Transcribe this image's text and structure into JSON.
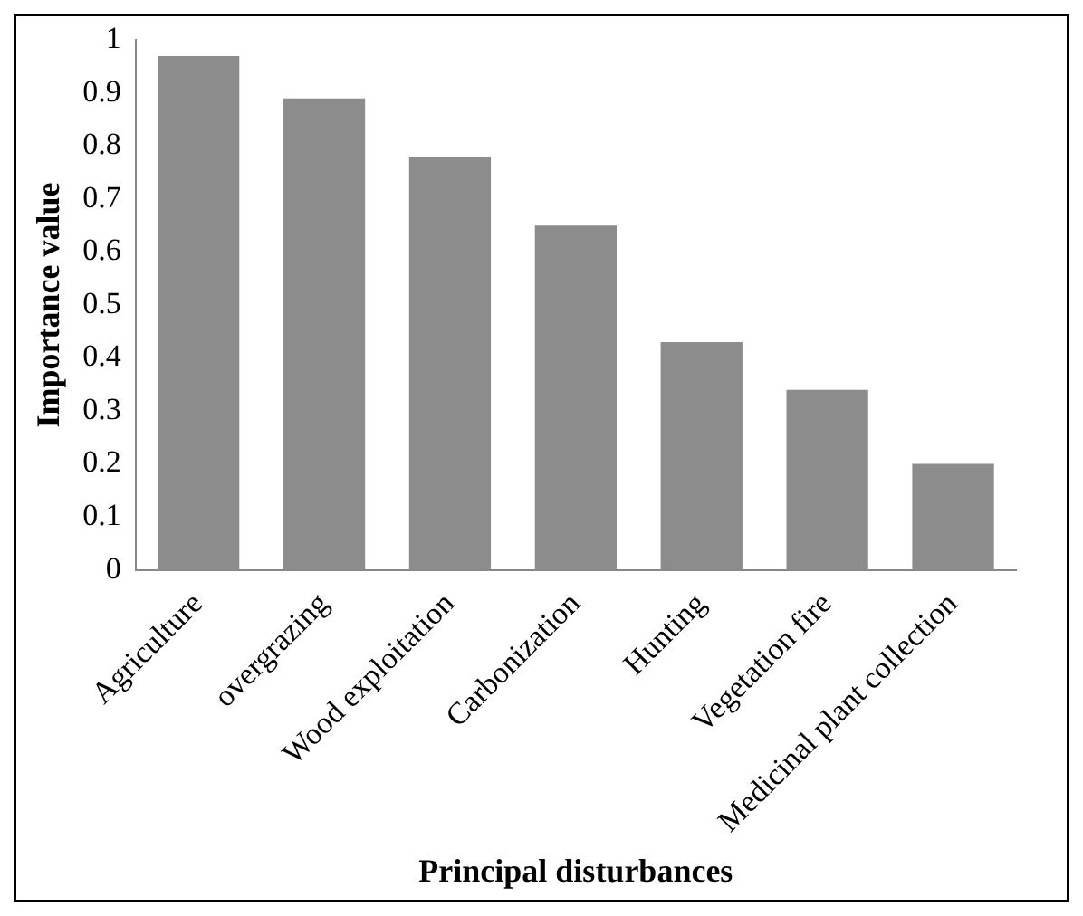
{
  "chart_data": {
    "type": "bar",
    "xlabel": "Principal disturbances",
    "ylabel": "Importance value",
    "categories": [
      "Agriculture",
      "overgrazing",
      "Wood exploitation",
      "Carbonization",
      "Hunting",
      "Vegetation fire",
      "Medicinal plant collection"
    ],
    "values": [
      0.97,
      0.89,
      0.78,
      0.65,
      0.43,
      0.34,
      0.2
    ],
    "color": "#8c8c8c",
    "ylim": [
      0,
      1
    ],
    "yticks": [
      0,
      0.1,
      0.2,
      0.3,
      0.4,
      0.5,
      0.6,
      0.7,
      0.8,
      0.9,
      1
    ],
    "grid": false,
    "legend": false
  }
}
